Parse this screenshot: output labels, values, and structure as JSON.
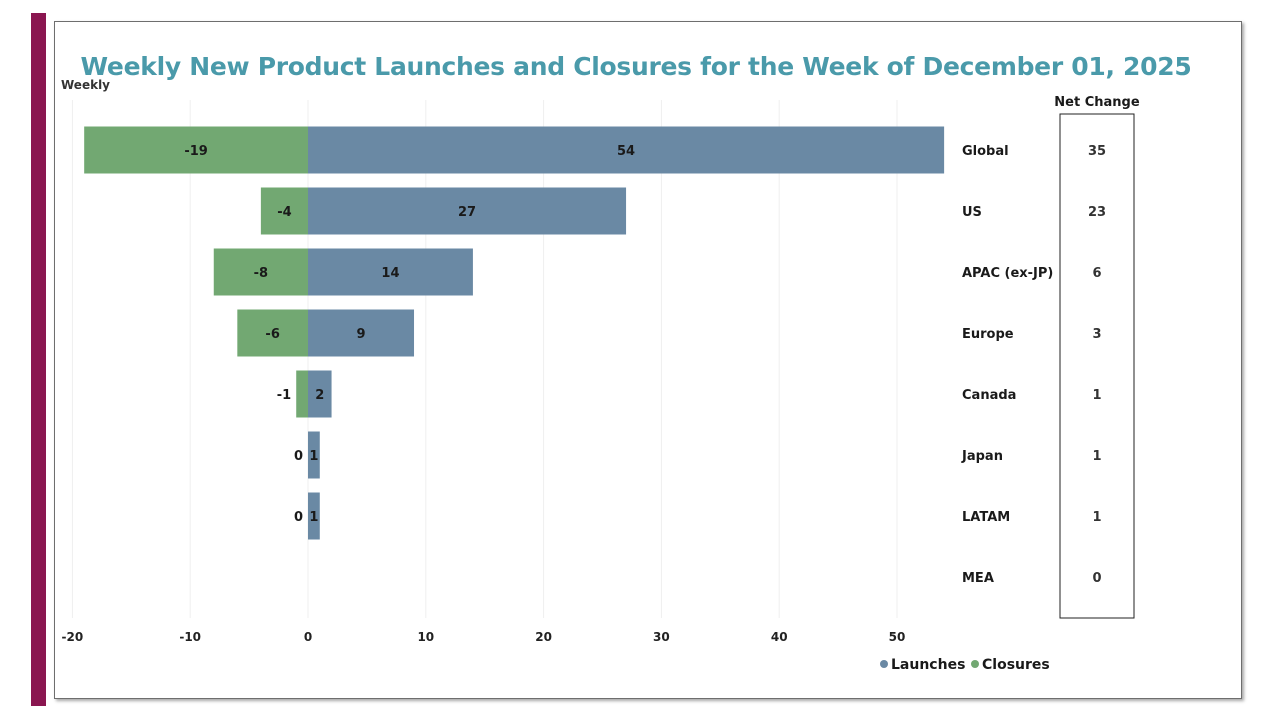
{
  "colors": {
    "accent": "#8a1650",
    "title": "#4a9aaa",
    "launches": "#6a89a4",
    "closures": "#72a872",
    "grid": "#efefef",
    "text": "#1a1a1a"
  },
  "chart_data": {
    "type": "bar",
    "orientation": "horizontal",
    "stacked": "diverging",
    "title": "Weekly New Product Launches and Closures for the Week of December 01, 2025",
    "y_axis_caption": "Weekly",
    "categories": [
      "Global",
      "US",
      "APAC (ex-JP)",
      "Europe",
      "Canada",
      "Japan",
      "LATAM",
      "MEA"
    ],
    "series": [
      {
        "name": "Launches",
        "color": "#6a89a4",
        "values": [
          54,
          27,
          14,
          9,
          2,
          1,
          1,
          0
        ]
      },
      {
        "name": "Closures",
        "color": "#72a872",
        "values": [
          -19,
          -4,
          -8,
          -6,
          -1,
          0,
          0,
          0
        ]
      }
    ],
    "bar_labels": {
      "launches": [
        "54",
        "27",
        "14",
        "9",
        "2",
        "1",
        "1",
        ""
      ],
      "closures": [
        "-19",
        "-4",
        "-8",
        "-6",
        "-1",
        "0",
        "0",
        ""
      ]
    },
    "net_change": {
      "header": "Net Change",
      "values": [
        "35",
        "23",
        "6",
        "3",
        "1",
        "1",
        "1",
        "0"
      ]
    },
    "xlabel": "",
    "ylabel": "",
    "xlim": [
      -20,
      54
    ],
    "x_ticks": [
      -20,
      -10,
      0,
      10,
      20,
      30,
      40,
      50
    ],
    "x_tick_labels": [
      "-20",
      "-10",
      "0",
      "10",
      "20",
      "30",
      "40",
      "50"
    ],
    "grid": true,
    "legend": {
      "position": "bottom-right",
      "entries": [
        {
          "label": "Launches",
          "color": "#6a89a4"
        },
        {
          "label": "Closures",
          "color": "#72a872"
        }
      ]
    }
  }
}
